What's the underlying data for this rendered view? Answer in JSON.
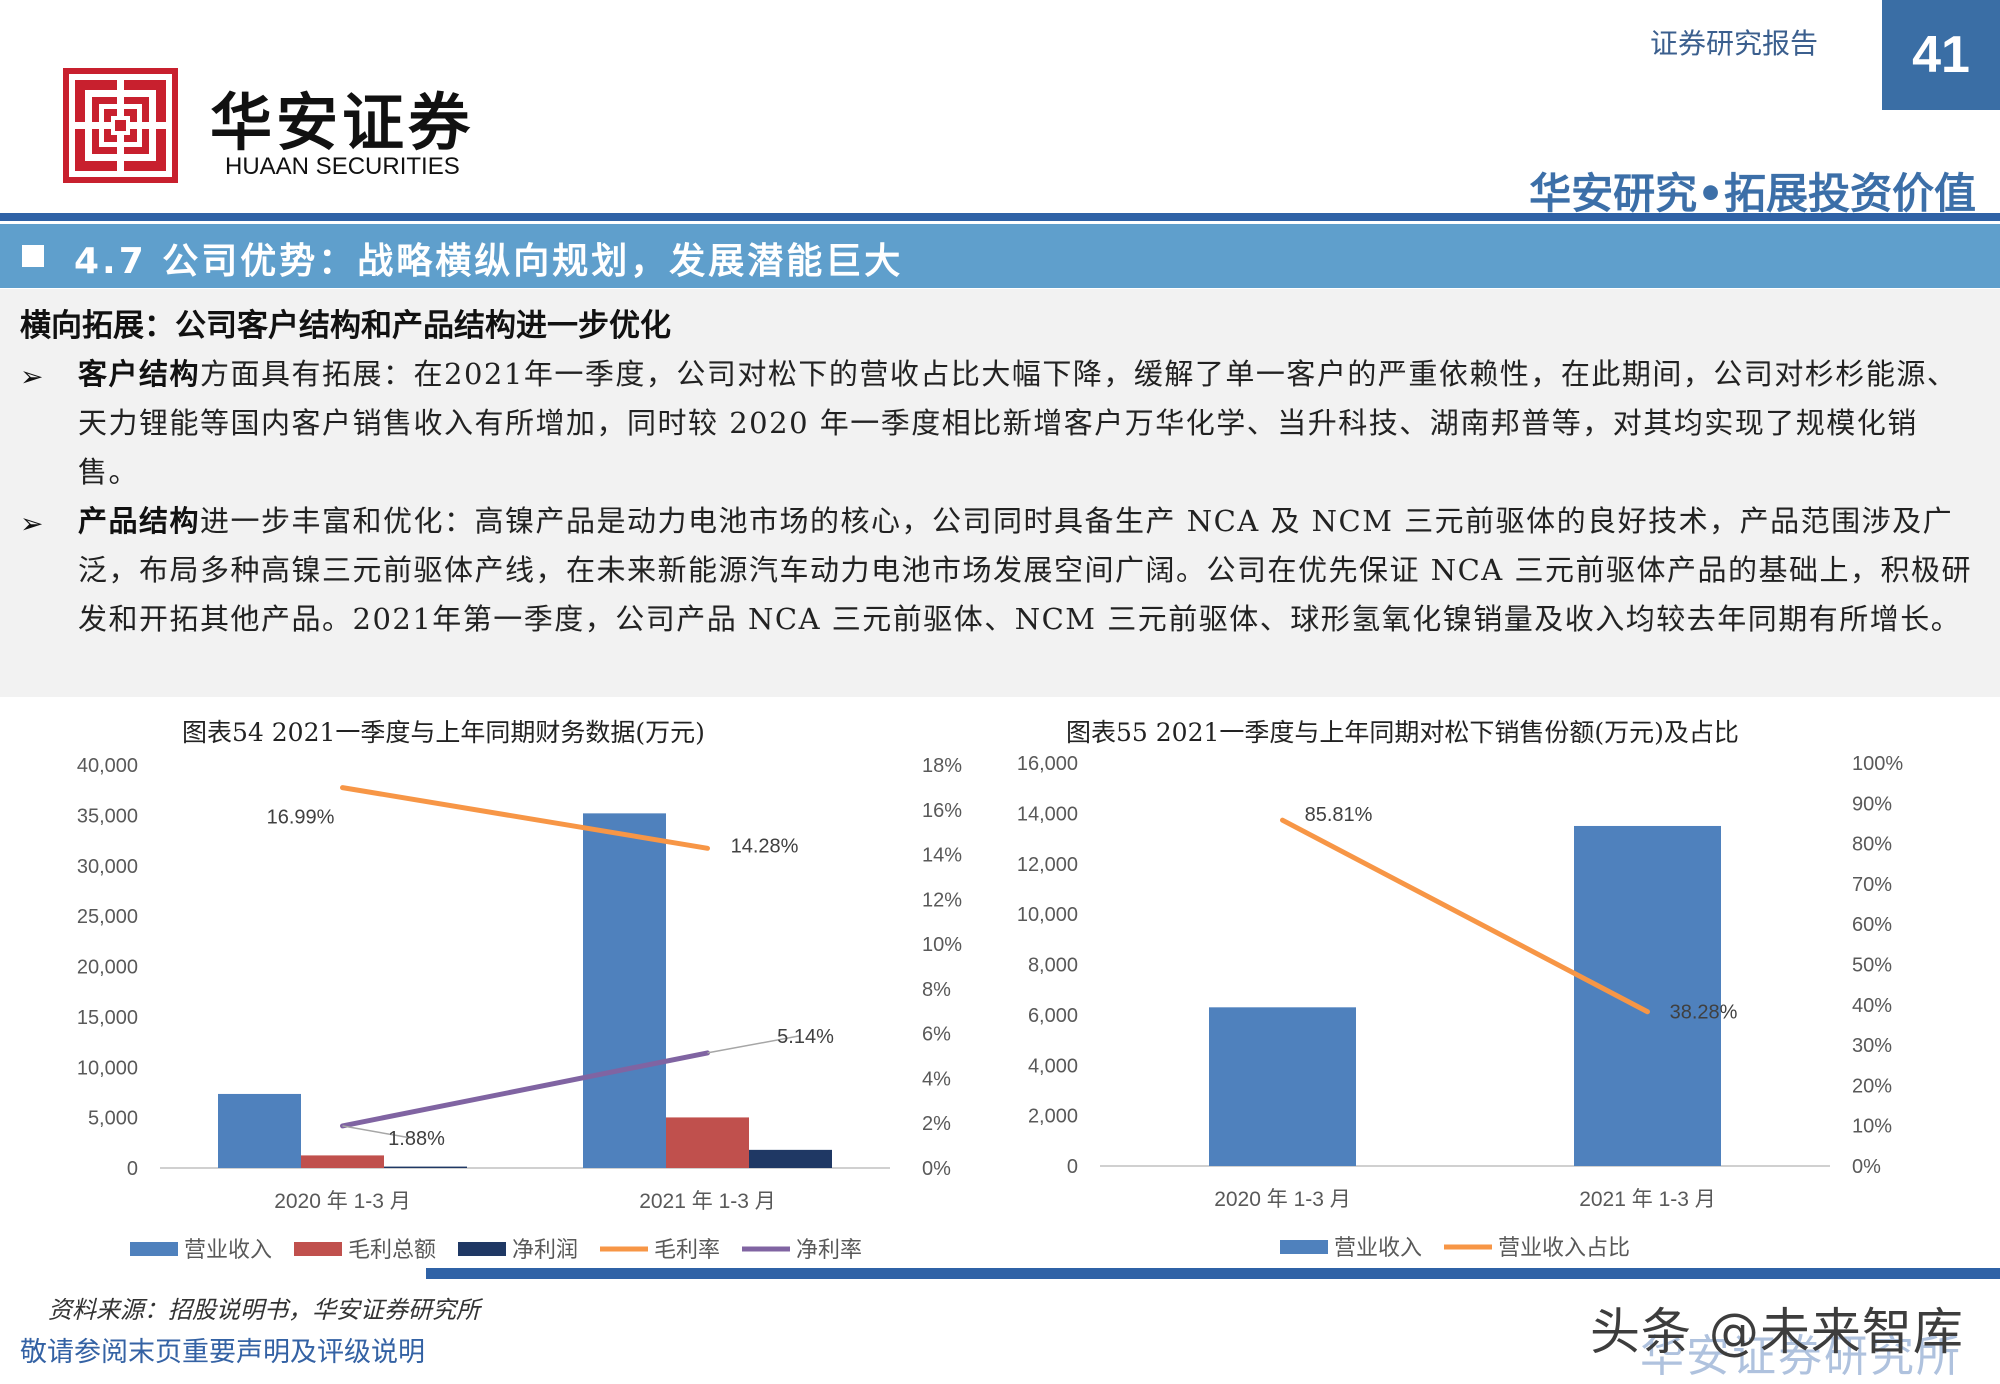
{
  "header": {
    "brand_cn": "华安证券",
    "brand_en": "HUAAN SECURITIES",
    "report_type": "证券研究报告",
    "page_number": "41",
    "slogan": "华安研究•拓展投资价值"
  },
  "section": {
    "title": "4.7 公司优势：战略横纵向规划，发展潜能巨大",
    "sub_heading": "横向拓展：公司客户结构和产品结构进一步优化",
    "bullets": [
      {
        "bold": "客户结构",
        "text": "方面具有拓展：在2021年一季度，公司对松下的营收占比大幅下降，缓解了单一客户的严重依赖性，在此期间，公司对杉杉能源、天力锂能等国内客户销售收入有所增加，同时较 2020 年一季度相比新增客户万华化学、当升科技、湖南邦普等，对其均实现了规模化销售。"
      },
      {
        "bold": "产品结构",
        "text": "进一步丰富和优化：高镍产品是动力电池市场的核心，公司同时具备生产 NCA 及 NCM 三元前驱体的良好技术，产品范围涉及广泛，布局多种高镍三元前驱体产线，在未来新能源汽车动力电池市场发展空间广阔。公司在优先保证 NCA 三元前驱体产品的基础上，积极研发和开拓其他产品。2021年第一季度，公司产品 NCA 三元前驱体、NCM 三元前驱体、球形氢氧化镍销量及收入均较去年同期有所增长。"
      }
    ]
  },
  "chart_data": [
    {
      "type": "bar",
      "title": "图表54 2021一季度与上年同期财务数据(万元)",
      "categories": [
        "2020 年 1-3 月",
        "2021 年 1-3 月"
      ],
      "series": [
        {
          "name": "营业收入",
          "kind": "bar",
          "axis": "left",
          "color": "#4f81bd",
          "values": [
            7350,
            35200
          ]
        },
        {
          "name": "毛利总额",
          "kind": "bar",
          "axis": "left",
          "color": "#c0504d",
          "values": [
            1250,
            5020
          ]
        },
        {
          "name": "净利润",
          "kind": "bar",
          "axis": "left",
          "color": "#1f3864",
          "values": [
            140,
            1800
          ]
        },
        {
          "name": "毛利率",
          "kind": "line",
          "axis": "right",
          "color": "#f79646",
          "values": [
            16.99,
            14.28
          ],
          "labels": [
            "16.99%",
            "14.28%"
          ]
        },
        {
          "name": "净利率",
          "kind": "line",
          "axis": "right",
          "color": "#8064a2",
          "values": [
            1.88,
            5.14
          ],
          "labels": [
            "1.88%",
            "5.14%"
          ]
        }
      ],
      "left_axis": {
        "min": 0,
        "max": 40000,
        "ticks": [
          "0",
          "5,000",
          "10,000",
          "15,000",
          "20,000",
          "25,000",
          "30,000",
          "35,000",
          "40,000"
        ]
      },
      "right_axis": {
        "min": 0,
        "max": 18,
        "ticks": [
          "0%",
          "2%",
          "4%",
          "6%",
          "8%",
          "10%",
          "12%",
          "14%",
          "16%",
          "18%"
        ]
      },
      "legend_position": "bottom",
      "grid": false
    },
    {
      "type": "bar",
      "title": "图表55 2021一季度与上年同期对松下销售份额(万元)及占比",
      "categories": [
        "2020 年 1-3 月",
        "2021 年 1-3 月"
      ],
      "series": [
        {
          "name": "营业收入",
          "kind": "bar",
          "axis": "left",
          "color": "#4f81bd",
          "values": [
            6300,
            13500
          ]
        },
        {
          "name": "营业收入占比",
          "kind": "line",
          "axis": "right",
          "color": "#f79646",
          "values": [
            85.81,
            38.28
          ],
          "labels": [
            "85.81%",
            "38.28%"
          ]
        }
      ],
      "left_axis": {
        "min": 0,
        "max": 16000,
        "ticks": [
          "0",
          "2,000",
          "4,000",
          "6,000",
          "8,000",
          "10,000",
          "12,000",
          "14,000",
          "16,000"
        ]
      },
      "right_axis": {
        "min": 0,
        "max": 100,
        "ticks": [
          "0%",
          "10%",
          "20%",
          "30%",
          "40%",
          "50%",
          "60%",
          "70%",
          "80%",
          "90%",
          "100%"
        ]
      },
      "legend_position": "bottom",
      "grid": false
    }
  ],
  "footer": {
    "source": "资料来源：招股说明书，华安证券研究所",
    "disclaimer": "敬请参阅末页重要声明及评级说明",
    "watermark": "头条 @未来智库",
    "watermark_under": "华安证券研究所"
  },
  "colors": {
    "primary_blue": "#2f62a6",
    "section_band": "#5f9fcc",
    "logo_red": "#c8202e"
  }
}
